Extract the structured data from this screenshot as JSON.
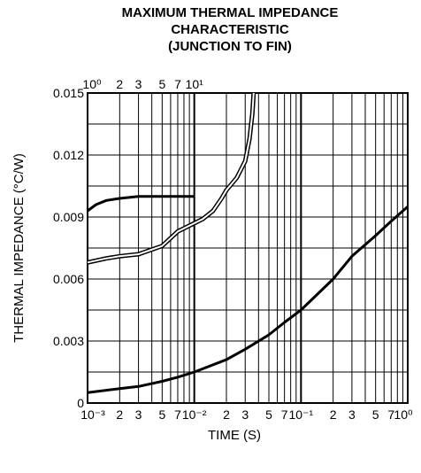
{
  "chart_data": {
    "type": "line",
    "title": [
      "MAXIMUM THERMAL IMPEDANCE",
      "CHARACTERISTIC",
      "(JUNCTION TO FIN)"
    ],
    "xlabel": "TIME  (S)",
    "ylabel": "THERMAL IMPEDANCE  (°C/W)",
    "x_scale": "log",
    "xlim": [
      0.001,
      1
    ],
    "ylim": [
      0,
      0.015
    ],
    "y_ticks": [
      "0",
      "0.003",
      "0.006",
      "0.009",
      "0.012",
      "0.015"
    ],
    "x_tick_labels_bottom": [
      "10⁻³",
      "2",
      "3",
      "5",
      "7",
      "10⁻²",
      "2",
      "3",
      "5",
      "7",
      "10⁻¹",
      "2",
      "3",
      "5",
      "7",
      "10⁰"
    ],
    "x_tick_labels_top": [
      "10⁰",
      "2",
      "3",
      "5",
      "7",
      "10¹"
    ],
    "grid": true,
    "series": [
      {
        "axis": "bottom",
        "x": [
          0.001,
          0.002,
          0.003,
          0.005,
          0.007,
          0.01,
          0.02,
          0.03,
          0.05,
          0.07,
          0.1,
          0.2,
          0.3,
          0.5,
          0.7,
          1.0
        ],
        "y": [
          0.0005,
          0.0007,
          0.0008,
          0.00105,
          0.00125,
          0.0015,
          0.0021,
          0.0026,
          0.0033,
          0.0039,
          0.0045,
          0.006,
          0.0071,
          0.0081,
          0.0088,
          0.0095
        ]
      },
      {
        "axis": "top",
        "x": [
          1,
          1.2,
          1.5,
          2,
          3,
          5,
          7,
          10
        ],
        "y": [
          0.0093,
          0.0096,
          0.0098,
          0.0099,
          0.01,
          0.01,
          0.01,
          0.01
        ]
      },
      {
        "axis": "top",
        "style": "double",
        "x": [
          1,
          1.5,
          2,
          3,
          5,
          7,
          10,
          12,
          15,
          18,
          20,
          25,
          30,
          33,
          35,
          36
        ],
        "y": [
          0.0068,
          0.007,
          0.0071,
          0.0072,
          0.0076,
          0.0083,
          0.0087,
          0.0089,
          0.0093,
          0.0099,
          0.0103,
          0.0109,
          0.0117,
          0.0128,
          0.014,
          0.015
        ]
      }
    ]
  }
}
